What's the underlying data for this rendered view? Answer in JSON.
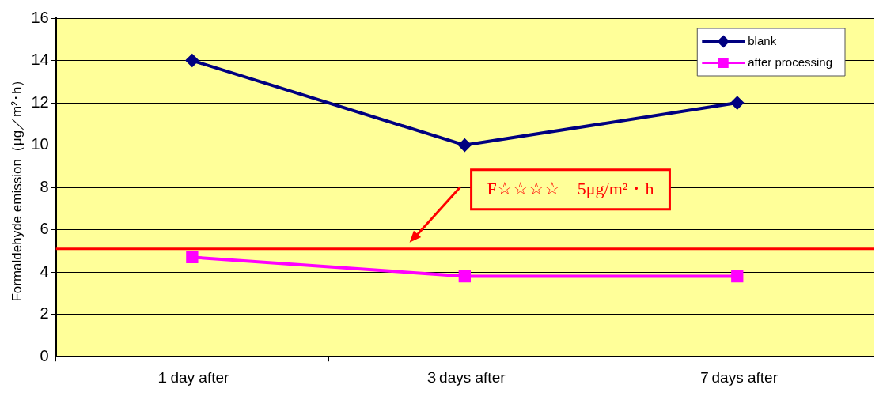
{
  "chart_data": {
    "type": "line",
    "ylabel": "Formaldehyde emission（μg／m²･h）",
    "categories": [
      "１day after",
      "３days after",
      "７days after"
    ],
    "series": [
      {
        "name": "blank",
        "color": "#000080",
        "values": [
          14,
          10,
          12
        ],
        "marker": "diamond"
      },
      {
        "name": "after processing",
        "color": "#ff00ff",
        "values": [
          4.7,
          3.8,
          3.8
        ],
        "marker": "square"
      }
    ],
    "ylim": [
      0,
      16
    ],
    "yticks": [
      0,
      2,
      4,
      6,
      8,
      10,
      12,
      14,
      16
    ],
    "grid": "y",
    "legend": "top right",
    "line_style": "solid",
    "ref_lines": [
      {
        "axis": "y",
        "value": 5.1,
        "label": "F☆☆☆☆　5μg/m²・h",
        "color": "#ff0000"
      }
    ]
  }
}
